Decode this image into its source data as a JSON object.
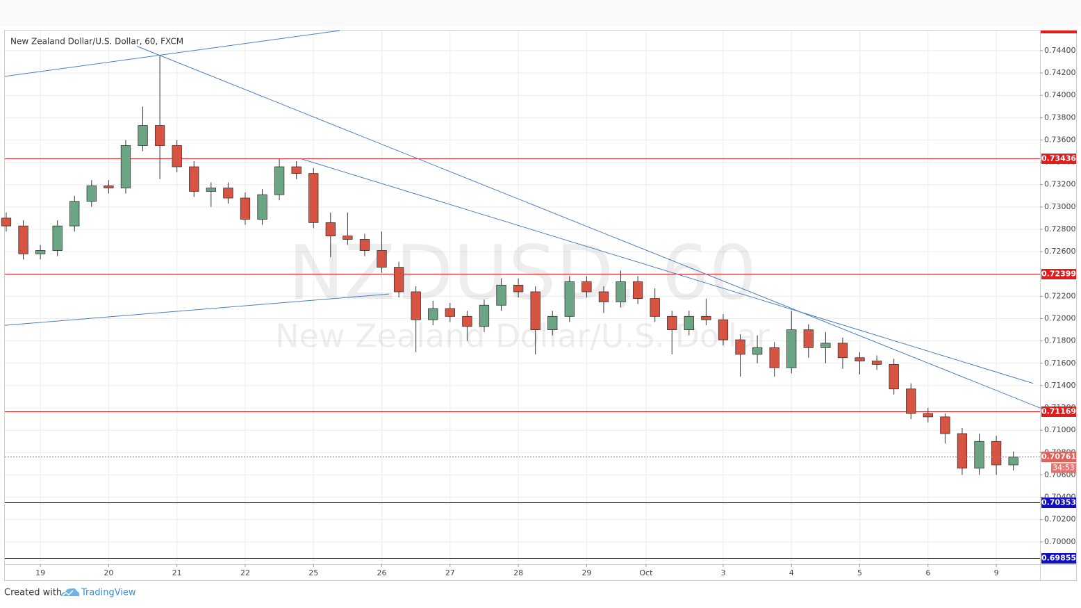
{
  "chart_data": {
    "type": "candlestick",
    "title": "New Zealand Dollar/U.S. Dollar, 60, FXCM",
    "watermark_symbol": "NZDUSD, 60",
    "watermark_name": "New Zealand Dollar/U.S. Dollar",
    "up_color": "#6ba583",
    "down_color": "#d75442",
    "grid": true,
    "xlim": [
      -0.52,
      14.64
    ],
    "ylim": [
      0.698,
      0.7458
    ],
    "xticks": [
      {
        "value": 0,
        "label": "19"
      },
      {
        "value": 1,
        "label": "20"
      },
      {
        "value": 2,
        "label": "21"
      },
      {
        "value": 3,
        "label": "22"
      },
      {
        "value": 4,
        "label": "25"
      },
      {
        "value": 5,
        "label": "26"
      },
      {
        "value": 6,
        "label": "27"
      },
      {
        "value": 7,
        "label": "28"
      },
      {
        "value": 8,
        "label": "29"
      },
      {
        "value": 8.87,
        "label": "Oct"
      },
      {
        "value": 10,
        "label": "3"
      },
      {
        "value": 11,
        "label": "4"
      },
      {
        "value": 12,
        "label": "5"
      },
      {
        "value": 13,
        "label": "6"
      },
      {
        "value": 14,
        "label": "9"
      }
    ],
    "yticks": [
      {
        "value": 0.7,
        "label": "0.70000"
      },
      {
        "value": 0.702,
        "label": "0.70200"
      },
      {
        "value": 0.704,
        "label": "0.70400"
      },
      {
        "value": 0.706,
        "label": "0.70600"
      },
      {
        "value": 0.708,
        "label": "0.70800"
      },
      {
        "value": 0.71,
        "label": "0.71000"
      },
      {
        "value": 0.712,
        "label": "0.71200"
      },
      {
        "value": 0.714,
        "label": "0.71400"
      },
      {
        "value": 0.716,
        "label": "0.71600"
      },
      {
        "value": 0.718,
        "label": "0.71800"
      },
      {
        "value": 0.72,
        "label": "0.72000"
      },
      {
        "value": 0.722,
        "label": "0.72200"
      },
      {
        "value": 0.724,
        "label": "0.72400"
      },
      {
        "value": 0.726,
        "label": "0.72600"
      },
      {
        "value": 0.728,
        "label": "0.72800"
      },
      {
        "value": 0.73,
        "label": "0.73000"
      },
      {
        "value": 0.732,
        "label": "0.73200"
      },
      {
        "value": 0.734,
        "label": "0.73400"
      },
      {
        "value": 0.736,
        "label": "0.73600"
      },
      {
        "value": 0.738,
        "label": "0.73800"
      },
      {
        "value": 0.74,
        "label": "0.74000"
      },
      {
        "value": 0.742,
        "label": "0.74200"
      },
      {
        "value": 0.744,
        "label": "0.74400"
      }
    ],
    "x": [
      -0.5,
      -0.25,
      0,
      0.25,
      0.5,
      0.75,
      1,
      1.25,
      1.5,
      1.75,
      2,
      2.25,
      2.5,
      2.75,
      3,
      3.25,
      3.5,
      3.75,
      4,
      4.25,
      4.5,
      4.75,
      5,
      5.25,
      5.5,
      5.75,
      6,
      6.25,
      6.5,
      6.75,
      7,
      7.25,
      7.5,
      7.75,
      8,
      8.25,
      8.5,
      8.75,
      9,
      9.25,
      9.5,
      9.75,
      10,
      10.25,
      10.5,
      10.75,
      11,
      11.25,
      11.5,
      11.75,
      12,
      12.25,
      12.5,
      12.75,
      13,
      13.25,
      13.5,
      13.75,
      14,
      14.25
    ],
    "open": [
      0.729,
      0.7283,
      0.7258,
      0.7261,
      0.7283,
      0.7305,
      0.7319,
      0.7317,
      0.7355,
      0.7373,
      0.7355,
      0.7336,
      0.7314,
      0.7317,
      0.7308,
      0.7289,
      0.7311,
      0.7336,
      0.733,
      0.7286,
      0.7274,
      0.7271,
      0.7261,
      0.7246,
      0.7224,
      0.7199,
      0.7209,
      0.7202,
      0.7193,
      0.7212,
      0.723,
      0.7224,
      0.719,
      0.7202,
      0.7233,
      0.7224,
      0.7215,
      0.7233,
      0.7218,
      0.7202,
      0.719,
      0.7202,
      0.7199,
      0.7181,
      0.7168,
      0.7174,
      0.7156,
      0.719,
      0.7174,
      0.7178,
      0.7165,
      0.7162,
      0.7159,
      0.7137,
      0.7115,
      0.7112,
      0.7097,
      0.7066,
      0.709,
      0.7069
    ],
    "high": [
      0.7295,
      0.7288,
      0.7266,
      0.7288,
      0.731,
      0.7324,
      0.7324,
      0.736,
      0.739,
      0.7436,
      0.736,
      0.7341,
      0.7322,
      0.7322,
      0.7313,
      0.7316,
      0.7343,
      0.7341,
      0.7335,
      0.7295,
      0.7295,
      0.7276,
      0.7278,
      0.7251,
      0.7229,
      0.7216,
      0.7214,
      0.7207,
      0.7217,
      0.7236,
      0.7236,
      0.7229,
      0.7207,
      0.7238,
      0.7238,
      0.7229,
      0.7243,
      0.7238,
      0.7227,
      0.7207,
      0.7207,
      0.7218,
      0.7204,
      0.7186,
      0.7185,
      0.7179,
      0.7207,
      0.7195,
      0.7188,
      0.7183,
      0.717,
      0.7167,
      0.7164,
      0.7142,
      0.712,
      0.7115,
      0.7102,
      0.7097,
      0.7095,
      0.7081
    ],
    "low": [
      0.7278,
      0.7253,
      0.7253,
      0.7256,
      0.7278,
      0.73,
      0.7312,
      0.7312,
      0.735,
      0.7325,
      0.7331,
      0.7309,
      0.73,
      0.7303,
      0.7284,
      0.7284,
      0.7306,
      0.7325,
      0.7281,
      0.7255,
      0.7266,
      0.7256,
      0.7241,
      0.7219,
      0.717,
      0.7194,
      0.7197,
      0.718,
      0.7188,
      0.7207,
      0.7219,
      0.7168,
      0.7185,
      0.7197,
      0.7219,
      0.7205,
      0.721,
      0.7213,
      0.7197,
      0.7168,
      0.7185,
      0.7194,
      0.7176,
      0.7148,
      0.716,
      0.7148,
      0.7151,
      0.7165,
      0.716,
      0.7155,
      0.715,
      0.7154,
      0.7132,
      0.711,
      0.7107,
      0.7088,
      0.706,
      0.706,
      0.706,
      0.7064
    ],
    "close": [
      0.7283,
      0.7258,
      0.7261,
      0.7283,
      0.7305,
      0.7319,
      0.7317,
      0.7355,
      0.7373,
      0.7355,
      0.7336,
      0.7314,
      0.7317,
      0.7308,
      0.7289,
      0.7311,
      0.7336,
      0.733,
      0.7286,
      0.7274,
      0.7271,
      0.7261,
      0.7246,
      0.7224,
      0.7199,
      0.7209,
      0.7202,
      0.7193,
      0.7212,
      0.723,
      0.7224,
      0.719,
      0.7202,
      0.7233,
      0.7224,
      0.7215,
      0.7233,
      0.7218,
      0.7202,
      0.719,
      0.7202,
      0.7199,
      0.7181,
      0.7168,
      0.7174,
      0.7156,
      0.719,
      0.7174,
      0.7178,
      0.7165,
      0.7162,
      0.7159,
      0.7137,
      0.7115,
      0.7112,
      0.7097,
      0.7066,
      0.709,
      0.7069,
      0.7076
    ],
    "levels": [
      {
        "value": 0.73436,
        "line_color": "#e31b1b",
        "label_color": "#e31b1b"
      },
      {
        "value": 0.72399,
        "line_color": "#e31b1b",
        "label_color": "#e31b1b"
      },
      {
        "value": 0.71169,
        "line_color": "#e31b1b",
        "label_color": "#e31b1b"
      },
      {
        "value": 0.70353,
        "line_color": "#111111",
        "label_color": "#1010c0"
      },
      {
        "value": 0.69855,
        "line_color": "#111111",
        "label_color": "#1010c0"
      }
    ],
    "last_price": {
      "value": 0.70761,
      "countdown": "34:53",
      "color": "#e0605a"
    },
    "trend_lines": [
      {
        "x": [
          -0.52,
          4.385
        ],
        "y": [
          0.7417,
          0.7458
        ]
      },
      {
        "x": [
          1.414,
          14.64
        ],
        "y": [
          0.7444,
          0.712
        ]
      },
      {
        "x": [
          3.825,
          14.54
        ],
        "y": [
          0.7343,
          0.7142
        ]
      },
      {
        "x": [
          -0.52,
          5.107
        ],
        "y": [
          0.7194,
          0.7222
        ]
      }
    ],
    "trend_color": "#4a7fc1"
  },
  "footer": {
    "created": "Created with",
    "brand": "TradingView"
  }
}
